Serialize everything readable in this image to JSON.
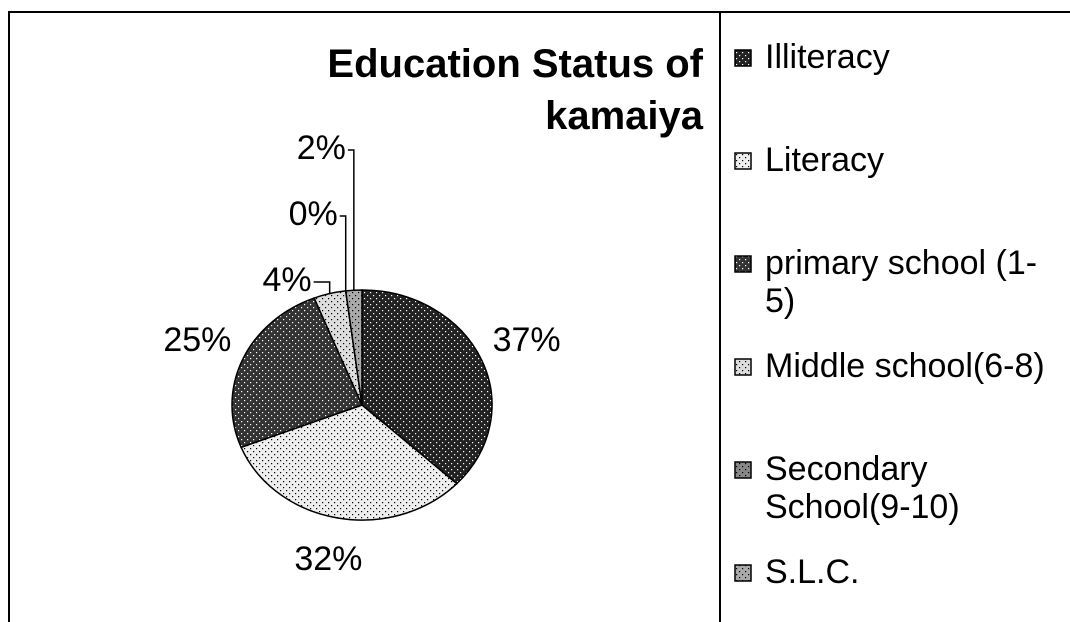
{
  "chart_data": {
    "type": "pie",
    "title": "Education Status of kamaiya",
    "categories": [
      "Illiteracy",
      "Literacy",
      "primary school (1-5)",
      "Middle school(6-8)",
      "Secondary School(9-10)",
      "S.L.C."
    ],
    "values": [
      37,
      32,
      25,
      4,
      0,
      2
    ],
    "value_labels": [
      "37%",
      "32%",
      "25%",
      "4%",
      "0%",
      "2%"
    ],
    "colors": [
      "#222222",
      "#eeeeee",
      "#333333",
      "#dddddd",
      "#888888",
      "#aaaaaa"
    ],
    "legend": "right"
  }
}
